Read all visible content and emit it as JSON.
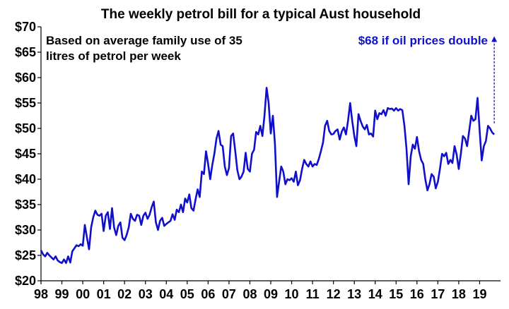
{
  "chart_data": {
    "type": "line",
    "title": "The weekly petrol bill for a typical Aust household",
    "subtitle": [
      "Based on average family use of 35",
      "litres of petrol per week"
    ],
    "xlabel": "",
    "ylabel": "",
    "ylim": [
      20,
      70
    ],
    "xlim": [
      1998.0,
      2020.0
    ],
    "grid": false,
    "y_ticks": [
      20,
      25,
      30,
      35,
      40,
      45,
      50,
      55,
      60,
      65,
      70
    ],
    "y_tick_labels": [
      "$20",
      "$25",
      "$30",
      "$35",
      "$40",
      "$45",
      "$50",
      "$55",
      "$60",
      "$65",
      "$70"
    ],
    "x_ticks": [
      1998,
      1999,
      2000,
      2001,
      2002,
      2003,
      2004,
      2005,
      2006,
      2007,
      2008,
      2009,
      2010,
      2011,
      2012,
      2013,
      2014,
      2015,
      2016,
      2017,
      2018,
      2019
    ],
    "x_tick_labels": [
      "98",
      "99",
      "00",
      "01",
      "02",
      "03",
      "04",
      "05",
      "06",
      "07",
      "08",
      "09",
      "10",
      "11",
      "12",
      "13",
      "14",
      "15",
      "16",
      "17",
      "18",
      "19"
    ],
    "series": [
      {
        "color": "#1010cc",
        "x": [
          1998.0,
          1998.1,
          1998.2,
          1998.3,
          1998.4,
          1998.5,
          1998.6,
          1998.7,
          1998.8,
          1998.9,
          1999.0,
          1999.1,
          1999.2,
          1999.3,
          1999.4,
          1999.5,
          1999.6,
          1999.7,
          1999.8,
          1999.9,
          2000.0,
          2000.1,
          2000.2,
          2000.3,
          2000.4,
          2000.5,
          2000.6,
          2000.7,
          2000.8,
          2000.9,
          2001.0,
          2001.1,
          2001.2,
          2001.3,
          2001.4,
          2001.5,
          2001.6,
          2001.7,
          2001.8,
          2001.9,
          2002.0,
          2002.1,
          2002.2,
          2002.3,
          2002.4,
          2002.5,
          2002.6,
          2002.7,
          2002.8,
          2002.9,
          2003.0,
          2003.1,
          2003.2,
          2003.3,
          2003.4,
          2003.5,
          2003.6,
          2003.7,
          2003.8,
          2003.9,
          2004.0,
          2004.1,
          2004.2,
          2004.3,
          2004.4,
          2004.5,
          2004.6,
          2004.7,
          2004.8,
          2004.9,
          2005.0,
          2005.1,
          2005.2,
          2005.3,
          2005.4,
          2005.5,
          2005.6,
          2005.7,
          2005.8,
          2005.9,
          2006.0,
          2006.1,
          2006.2,
          2006.3,
          2006.4,
          2006.5,
          2006.6,
          2006.7,
          2006.8,
          2006.9,
          2007.0,
          2007.1,
          2007.2,
          2007.3,
          2007.4,
          2007.5,
          2007.6,
          2007.7,
          2007.8,
          2007.9,
          2008.0,
          2008.1,
          2008.2,
          2008.3,
          2008.4,
          2008.5,
          2008.6,
          2008.7,
          2008.8,
          2008.9,
          2009.0,
          2009.1,
          2009.2,
          2009.3,
          2009.4,
          2009.5,
          2009.6,
          2009.7,
          2009.8,
          2009.9,
          2010.0,
          2010.1,
          2010.2,
          2010.3,
          2010.4,
          2010.5,
          2010.6,
          2010.7,
          2010.8,
          2010.9,
          2011.0,
          2011.1,
          2011.2,
          2011.3,
          2011.4,
          2011.5,
          2011.6,
          2011.7,
          2011.8,
          2011.9,
          2012.0,
          2012.1,
          2012.2,
          2012.3,
          2012.4,
          2012.5,
          2012.6,
          2012.7,
          2012.8,
          2012.9,
          2013.0,
          2013.1,
          2013.2,
          2013.3,
          2013.4,
          2013.5,
          2013.6,
          2013.7,
          2013.8,
          2013.9,
          2014.0,
          2014.1,
          2014.2,
          2014.3,
          2014.4,
          2014.5,
          2014.6,
          2014.7,
          2014.8,
          2014.9,
          2015.0,
          2015.1,
          2015.2,
          2015.3,
          2015.4,
          2015.5,
          2015.6,
          2015.7,
          2015.8,
          2015.9,
          2016.0,
          2016.1,
          2016.2,
          2016.3,
          2016.4,
          2016.5,
          2016.6,
          2016.7,
          2016.8,
          2016.9,
          2017.0,
          2017.1,
          2017.2,
          2017.3,
          2017.4,
          2017.5,
          2017.6,
          2017.7,
          2017.8,
          2017.9,
          2018.0,
          2018.1,
          2018.2,
          2018.3,
          2018.4,
          2018.5,
          2018.6,
          2018.7,
          2018.8,
          2018.9,
          2019.0,
          2019.1,
          2019.2,
          2019.3,
          2019.4,
          2019.5,
          2019.6,
          2019.7
        ],
        "values": [
          26.0,
          25.2,
          24.8,
          25.5,
          25.0,
          24.6,
          24.2,
          24.8,
          24.0,
          23.7,
          23.5,
          24.2,
          23.5,
          24.8,
          23.6,
          25.8,
          26.4,
          27.0,
          26.8,
          27.2,
          26.9,
          31.0,
          28.5,
          26.2,
          30.5,
          32.5,
          33.8,
          33.0,
          32.8,
          33.2,
          29.8,
          32.8,
          33.5,
          30.2,
          34.3,
          30.5,
          29.0,
          30.8,
          31.5,
          28.5,
          28.0,
          29.0,
          30.5,
          33.2,
          32.2,
          31.8,
          33.0,
          32.8,
          31.0,
          32.8,
          33.4,
          32.2,
          33.0,
          34.5,
          35.6,
          31.5,
          30.0,
          31.8,
          32.4,
          30.8,
          31.2,
          31.5,
          31.8,
          33.1,
          32.0,
          34.0,
          33.5,
          35.0,
          33.5,
          36.2,
          35.4,
          37.0,
          34.3,
          33.8,
          36.0,
          38.0,
          36.5,
          41.5,
          41.0,
          45.5,
          43.0,
          40.0,
          42.8,
          45.0,
          48.0,
          49.5,
          46.8,
          46.5,
          42.5,
          40.8,
          42.2,
          48.5,
          49.0,
          45.5,
          41.8,
          40.0,
          40.5,
          41.5,
          45.2,
          42.0,
          41.5,
          45.0,
          45.8,
          49.3,
          48.8,
          50.5,
          48.5,
          52.5,
          58.0,
          55.0,
          49.0,
          52.5,
          47.0,
          36.5,
          39.5,
          42.5,
          41.5,
          39.0,
          40.0,
          39.8,
          40.2,
          39.5,
          41.5,
          38.8,
          39.8,
          42.0,
          43.8,
          43.0,
          42.5,
          43.5,
          42.5,
          43.0,
          42.8,
          44.0,
          45.5,
          47.2,
          50.5,
          51.5,
          49.5,
          48.8,
          48.9,
          49.5,
          49.8,
          47.8,
          49.4,
          50.2,
          48.8,
          51.5,
          55.0,
          51.5,
          48.5,
          46.5,
          52.8,
          51.5,
          50.4,
          49.8,
          50.7,
          48.8,
          49.0,
          48.4,
          53.5,
          51.8,
          53.0,
          52.8,
          53.6,
          52.5,
          54.0,
          53.8,
          53.9,
          53.5,
          54.0,
          53.5,
          53.8,
          53.6,
          50.5,
          46.0,
          39.0,
          44.5,
          46.8,
          46.0,
          48.3,
          45.5,
          43.8,
          43.0,
          40.0,
          37.8,
          39.0,
          41.0,
          40.5,
          38.2,
          39.5,
          42.0,
          45.0,
          44.5,
          45.2,
          43.0,
          43.8,
          43.2,
          46.5,
          44.8,
          42.0,
          45.0,
          48.5,
          48.0,
          46.5,
          49.5,
          52.5,
          51.5,
          51.8,
          56.0,
          49.5,
          43.7,
          46.5,
          47.5,
          50.5,
          50.0,
          49.2,
          48.8
        ]
      }
    ],
    "annotations": [
      {
        "text": "$68 if oil prices double",
        "color": "#1010cc",
        "arrow": {
          "x": 2019.7,
          "from": 51.0,
          "to": 68.0
        }
      }
    ]
  }
}
